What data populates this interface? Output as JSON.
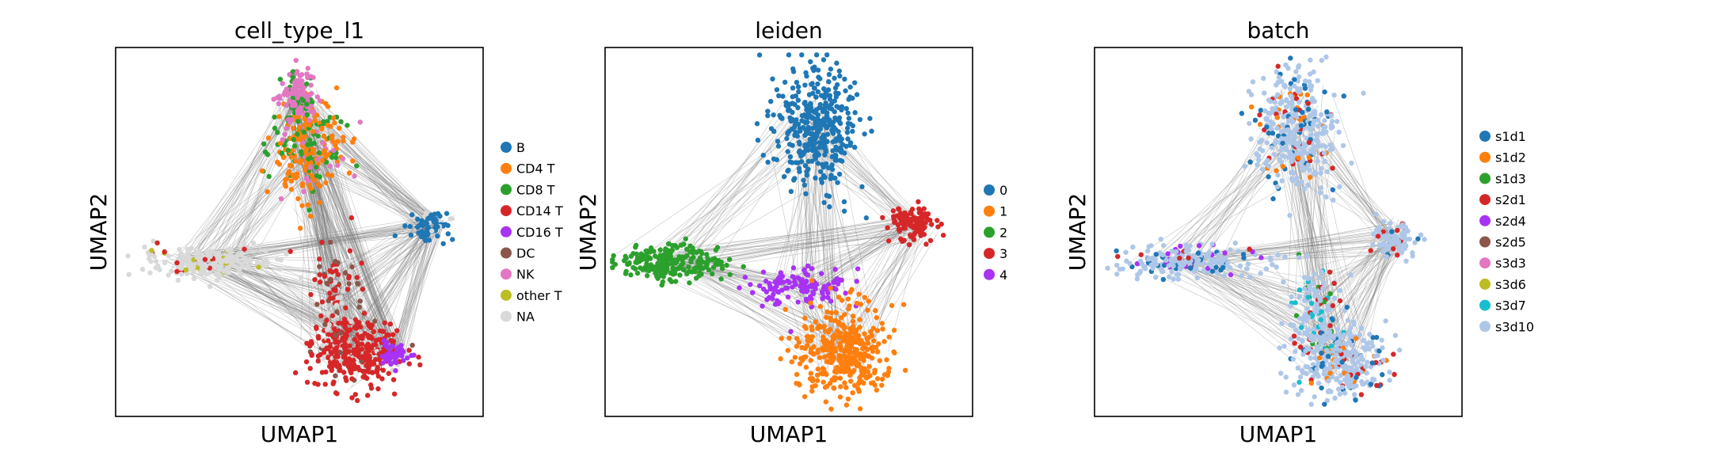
{
  "chart_data": [
    {
      "type": "scatter",
      "title": "cell_type_l1",
      "xlabel": "UMAP1",
      "ylabel": "UMAP2",
      "xticks": false,
      "yticks": false,
      "legend_position": "right",
      "legend": [
        {
          "label": "B",
          "color": "#1f77b4"
        },
        {
          "label": "CD4 T",
          "color": "#ff7f0e"
        },
        {
          "label": "CD8 T",
          "color": "#2ca02c"
        },
        {
          "label": "CD14 T",
          "color": "#d62728"
        },
        {
          "label": "CD16 T",
          "color": "#a832f5"
        },
        {
          "label": "DC",
          "color": "#8c564b"
        },
        {
          "label": "NK",
          "color": "#e377c2"
        },
        {
          "label": "other T",
          "color": "#bcbd22"
        },
        {
          "label": "NA",
          "color": "#d9d9d9"
        }
      ],
      "graph_edges_color": "#808080",
      "clusters": [
        {
          "label": "CD4 T",
          "x": 0.52,
          "y": 0.73,
          "sx": 0.05,
          "sy": 0.07,
          "n": 260,
          "mix": {
            "CD4 T": 0.55,
            "CD8 T": 0.3,
            "NK": 0.15
          }
        },
        {
          "label": "NK",
          "x": 0.49,
          "y": 0.87,
          "sx": 0.025,
          "sy": 0.035,
          "n": 120,
          "mix": {
            "NK": 0.85,
            "CD8 T": 0.15
          }
        },
        {
          "label": "B",
          "x": 0.86,
          "y": 0.52,
          "sx": 0.03,
          "sy": 0.02,
          "n": 70,
          "mix": {
            "B": 0.75,
            "NA": 0.25
          }
        },
        {
          "label": "NA",
          "x": 0.25,
          "y": 0.42,
          "sx": 0.09,
          "sy": 0.02,
          "n": 220,
          "mix": {
            "NA": 0.9,
            "CD14 T": 0.05,
            "other T": 0.05
          }
        },
        {
          "label": "CD14 T",
          "x": 0.65,
          "y": 0.17,
          "sx": 0.06,
          "sy": 0.045,
          "n": 300,
          "mix": {
            "CD14 T": 0.9,
            "DC": 0.05,
            "NA": 0.05
          }
        },
        {
          "label": "DC",
          "x": 0.6,
          "y": 0.34,
          "sx": 0.03,
          "sy": 0.06,
          "n": 90,
          "mix": {
            "CD14 T": 0.5,
            "DC": 0.3,
            "NA": 0.2
          }
        },
        {
          "label": "CD16 T",
          "x": 0.76,
          "y": 0.17,
          "sx": 0.02,
          "sy": 0.015,
          "n": 50,
          "mix": {
            "CD16 T": 1.0
          }
        }
      ]
    },
    {
      "type": "scatter",
      "title": "leiden",
      "xlabel": "UMAP1",
      "ylabel": "UMAP2",
      "xticks": false,
      "yticks": false,
      "legend_position": "right",
      "legend": [
        {
          "label": "0",
          "color": "#1f77b4"
        },
        {
          "label": "1",
          "color": "#ff7f0e"
        },
        {
          "label": "2",
          "color": "#2ca02c"
        },
        {
          "label": "3",
          "color": "#d62728"
        },
        {
          "label": "4",
          "color": "#a832f5"
        }
      ],
      "graph_edges_color": "#808080",
      "clusters": [
        {
          "label": "0",
          "x": 0.57,
          "y": 0.78,
          "sx": 0.055,
          "sy": 0.08,
          "n": 380,
          "mix": {
            "0": 1.0
          }
        },
        {
          "label": "3",
          "x": 0.84,
          "y": 0.52,
          "sx": 0.035,
          "sy": 0.025,
          "n": 110,
          "mix": {
            "3": 1.0
          }
        },
        {
          "label": "2",
          "x": 0.18,
          "y": 0.42,
          "sx": 0.07,
          "sy": 0.025,
          "n": 220,
          "mix": {
            "2": 1.0
          }
        },
        {
          "label": "4",
          "x": 0.54,
          "y": 0.35,
          "sx": 0.06,
          "sy": 0.025,
          "n": 120,
          "mix": {
            "4": 1.0
          }
        },
        {
          "label": "1",
          "x": 0.65,
          "y": 0.18,
          "sx": 0.065,
          "sy": 0.06,
          "n": 360,
          "mix": {
            "1": 1.0
          }
        }
      ]
    },
    {
      "type": "scatter",
      "title": "batch",
      "xlabel": "UMAP1",
      "ylabel": "UMAP2",
      "xticks": false,
      "yticks": false,
      "legend_position": "right",
      "legend": [
        {
          "label": "s1d1",
          "color": "#1f77b4"
        },
        {
          "label": "s1d2",
          "color": "#ff7f0e"
        },
        {
          "label": "s1d3",
          "color": "#2ca02c"
        },
        {
          "label": "s2d1",
          "color": "#d62728"
        },
        {
          "label": "s2d4",
          "color": "#a832f5"
        },
        {
          "label": "s2d5",
          "color": "#8c564b"
        },
        {
          "label": "s3d3",
          "color": "#e377c2"
        },
        {
          "label": "s3d6",
          "color": "#bcbd22"
        },
        {
          "label": "s3d7",
          "color": "#17becf"
        },
        {
          "label": "s3d10",
          "color": "#aec7e8"
        }
      ],
      "graph_edges_color": "#808080",
      "clusters": [
        {
          "label": "s3d10",
          "x": 0.55,
          "y": 0.78,
          "sx": 0.055,
          "sy": 0.08,
          "n": 380,
          "mix": {
            "s3d10": 0.7,
            "s1d1": 0.15,
            "s1d2": 0.1,
            "s2d1": 0.05
          }
        },
        {
          "label": "s3d10",
          "x": 0.82,
          "y": 0.48,
          "sx": 0.03,
          "sy": 0.03,
          "n": 80,
          "mix": {
            "s3d10": 0.85,
            "s2d1": 0.1,
            "s1d1": 0.05
          }
        },
        {
          "label": "s3d10",
          "x": 0.25,
          "y": 0.42,
          "sx": 0.09,
          "sy": 0.02,
          "n": 230,
          "mix": {
            "s3d10": 0.75,
            "s2d4": 0.1,
            "s1d1": 0.1,
            "s2d1": 0.05
          }
        },
        {
          "label": "s3d10",
          "x": 0.6,
          "y": 0.28,
          "sx": 0.035,
          "sy": 0.08,
          "n": 150,
          "mix": {
            "s3d10": 0.7,
            "s2d1": 0.1,
            "s1d3": 0.1,
            "s3d7": 0.1
          }
        },
        {
          "label": "s3d10",
          "x": 0.67,
          "y": 0.15,
          "sx": 0.06,
          "sy": 0.05,
          "n": 300,
          "mix": {
            "s3d10": 0.75,
            "s1d1": 0.1,
            "s2d1": 0.08,
            "s1d2": 0.07
          }
        }
      ]
    }
  ]
}
